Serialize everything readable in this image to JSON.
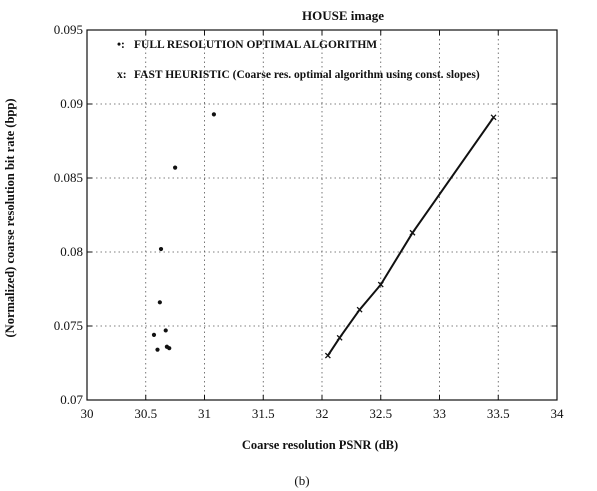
{
  "chart_data": {
    "type": "scatter",
    "title": "HOUSE image",
    "xlabel": "Coarse resolution PSNR (dB)",
    "ylabel": "(Normalized) coarse resolution bit rate (bpp)",
    "xlim": [
      30,
      34
    ],
    "ylim": [
      0.07,
      0.095
    ],
    "x_ticks": [
      30,
      30.5,
      31,
      31.5,
      32,
      32.5,
      33,
      33.5,
      34
    ],
    "x_tick_labels": [
      "30",
      "30.5",
      "31",
      "31.5",
      "32",
      "32.5",
      "33",
      "33.5",
      "34"
    ],
    "y_ticks": [
      0.07,
      0.075,
      0.08,
      0.085,
      0.09,
      0.095
    ],
    "y_tick_labels": [
      "0.07",
      "0.075",
      "0.08",
      "0.085",
      "0.09",
      "0.095"
    ],
    "grid": true,
    "legend_position": "top-left",
    "caption": "(b)",
    "series": [
      {
        "name": "FULL RESOLUTION OPTIMAL ALGORITHM",
        "marker_symbol": "•:",
        "marker": "dot",
        "line": false,
        "x": [
          30.57,
          30.6,
          30.62,
          30.63,
          30.67,
          30.68,
          30.7,
          30.75,
          31.08
        ],
        "y": [
          0.0744,
          0.0734,
          0.0766,
          0.0802,
          0.0747,
          0.0736,
          0.0735,
          0.0857,
          0.0893
        ]
      },
      {
        "name": "FAST HEURISTIC (Coarse res. optimal algorithm using const. slopes)",
        "marker_symbol": "x:",
        "marker": "x",
        "line": true,
        "x": [
          32.05,
          32.15,
          32.32,
          32.5,
          32.77,
          33.46
        ],
        "y": [
          0.073,
          0.0742,
          0.0761,
          0.0778,
          0.0813,
          0.0891
        ]
      }
    ],
    "colors": {
      "ink": "#111111",
      "grid": "#555555",
      "background": "#ffffff"
    }
  }
}
